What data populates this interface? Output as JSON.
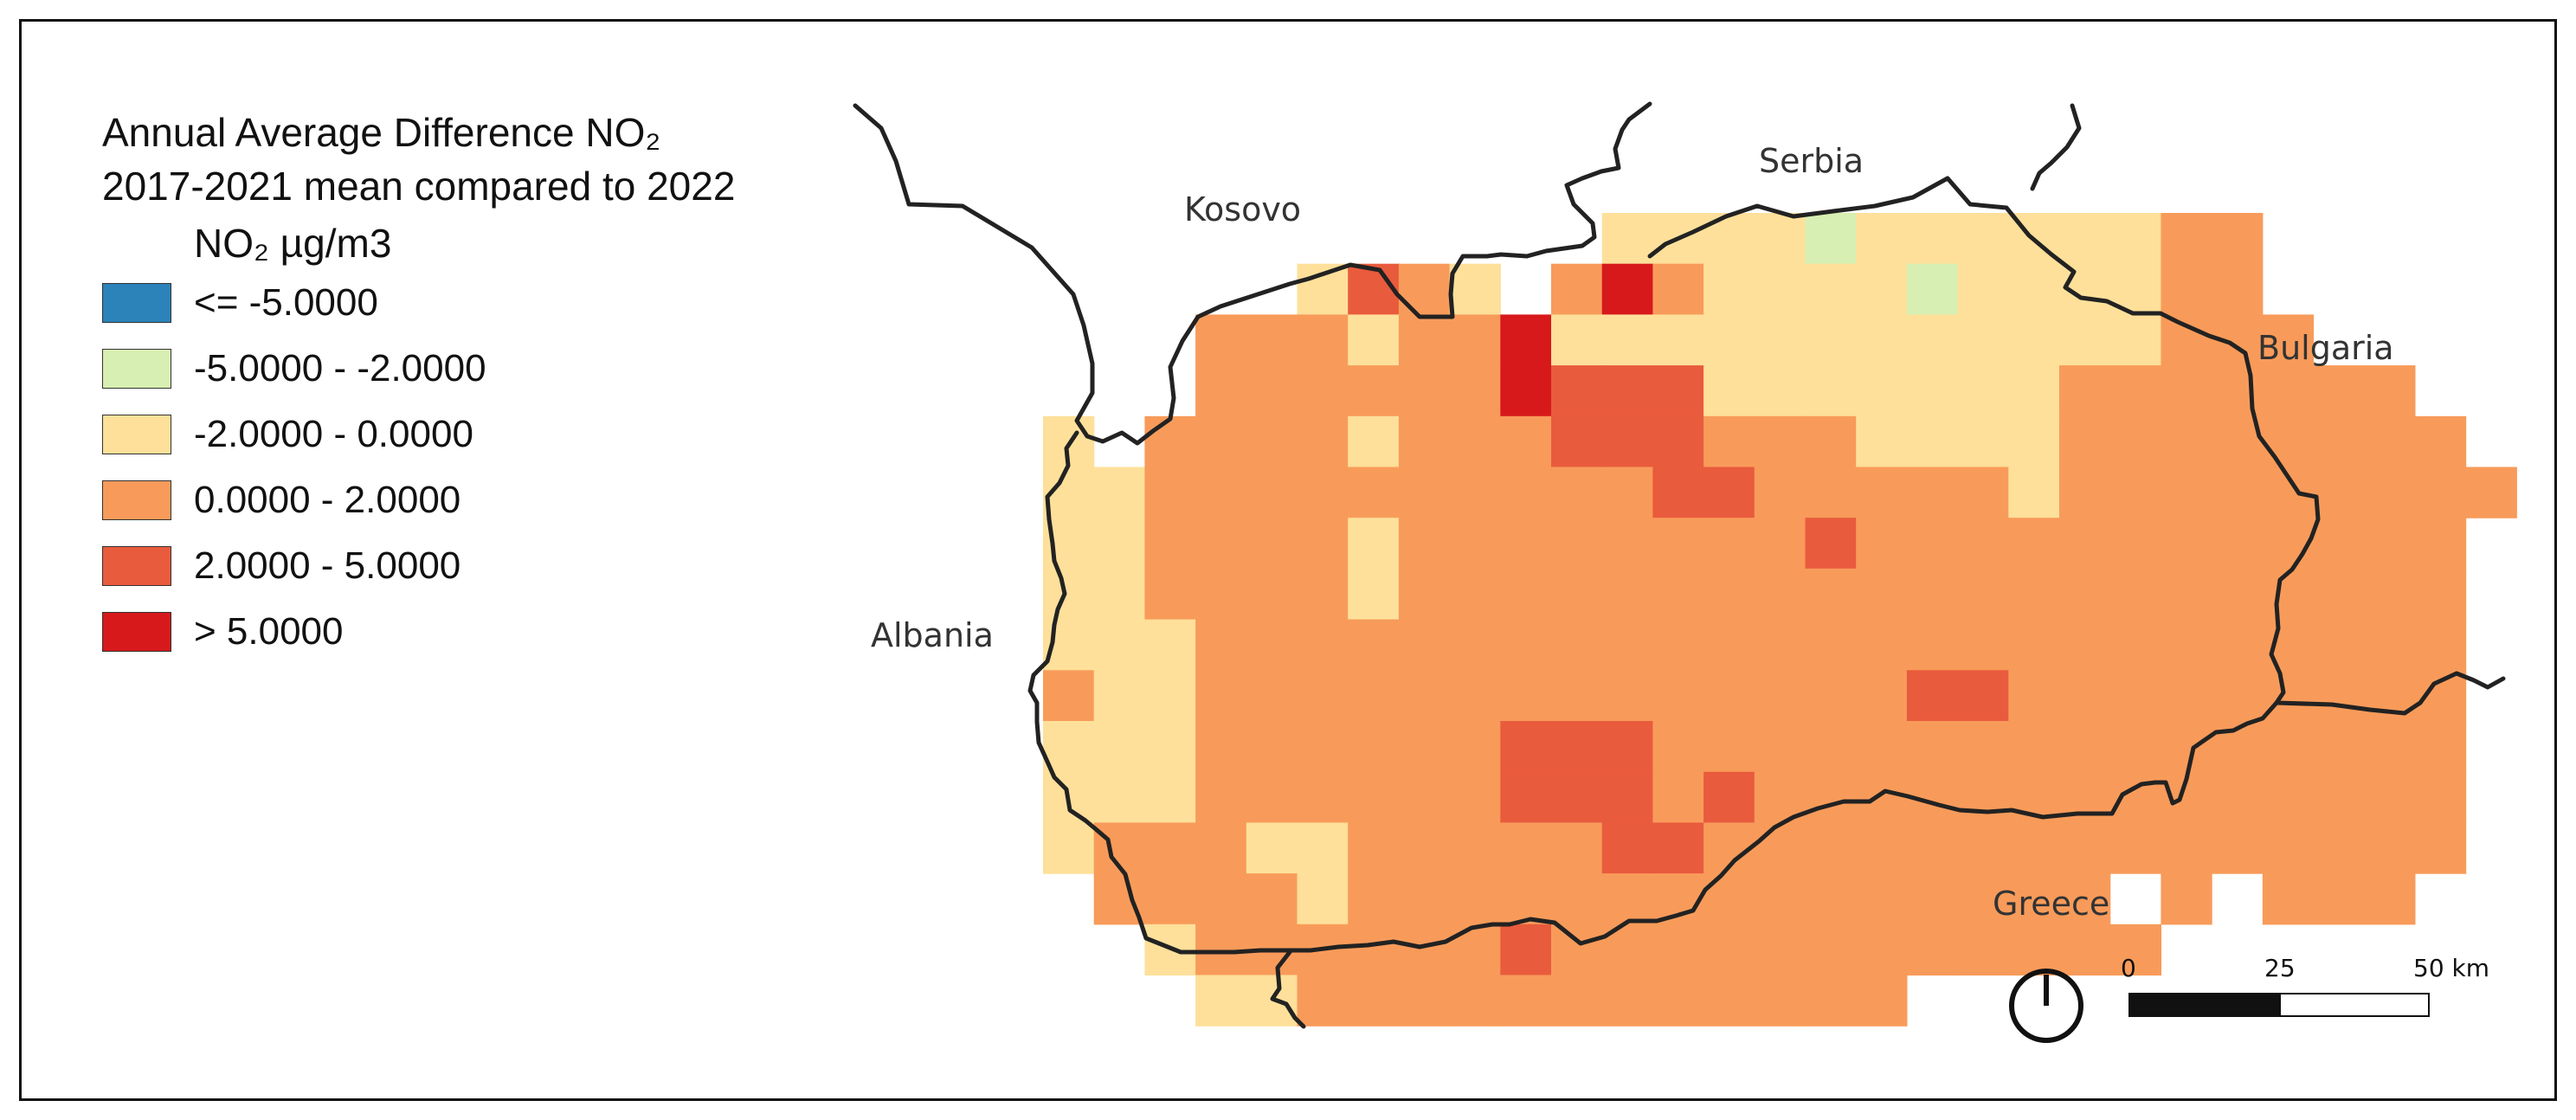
{
  "legend": {
    "title_line1": "Annual Average Difference NO₂",
    "title_line2": "2017-2021 mean compared to 2022",
    "unit": "NO₂ µg/m3",
    "classes": [
      {
        "label": "<= -5.0000",
        "color": "#2b83ba"
      },
      {
        "label": "-5.0000 - -2.0000",
        "color": "#d7efb2"
      },
      {
        "label": "-2.0000 - 0.0000",
        "color": "#fee09a"
      },
      {
        "label": "0.0000 - 2.0000",
        "color": "#f89b5a"
      },
      {
        "label": "2.0000 - 5.0000",
        "color": "#e95b3d"
      },
      {
        "label": "> 5.0000",
        "color": "#d7191c"
      }
    ]
  },
  "places": {
    "kosovo": "Kosovo",
    "serbia": "Serbia",
    "bulgaria": "Bulgaria",
    "albania": "Albania",
    "greece": "Greece"
  },
  "scalebar": {
    "label_0": "0",
    "label_25": "25",
    "label_50": "50 km"
  },
  "colors": {
    "border_line": "#222222",
    "frame": "#111111"
  },
  "icons": {
    "north_arrow": "north-arrow-icon"
  }
}
